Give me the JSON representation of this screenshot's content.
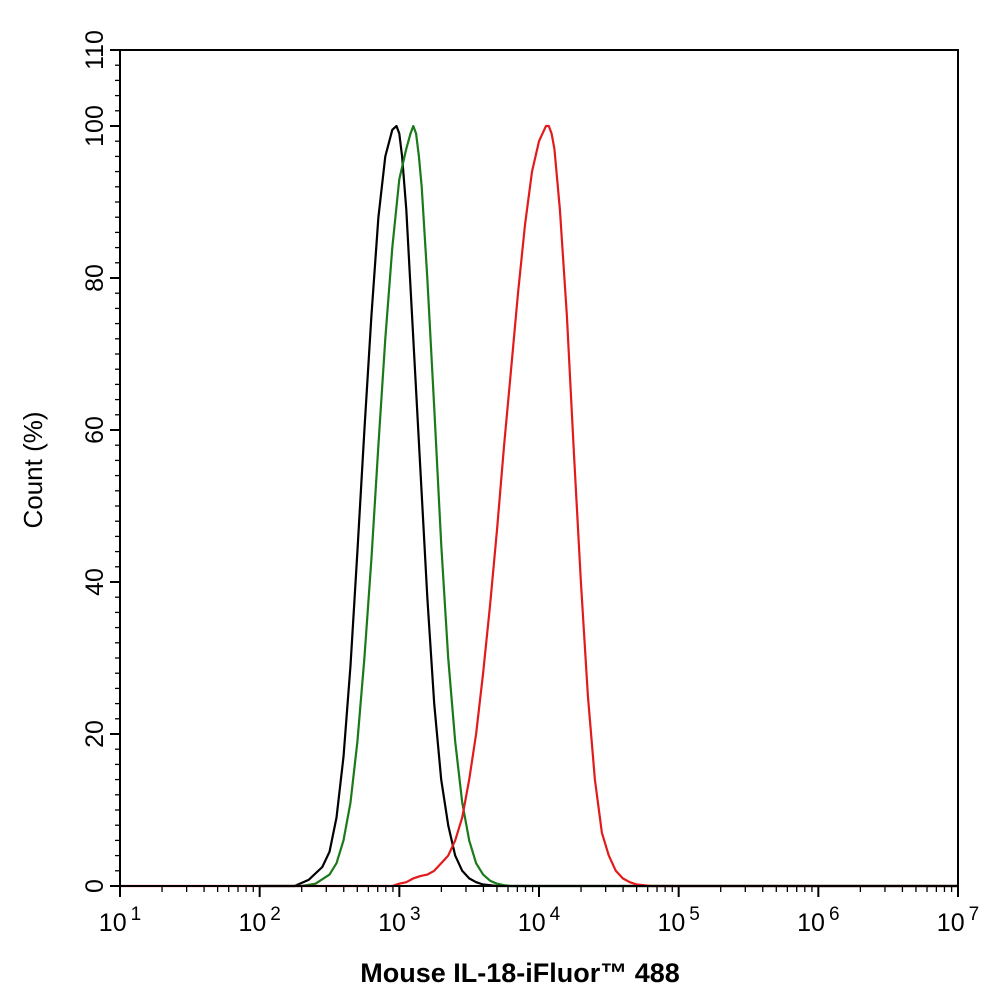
{
  "chart_data": {
    "type": "line",
    "title": "",
    "xlabel": "Mouse IL-18-iFluor™ 488",
    "ylabel": "Count  (%)",
    "xscale": "log",
    "xlim": [
      10,
      10000000
    ],
    "ylim": [
      0,
      110
    ],
    "x_ticks": [
      {
        "value": 10,
        "base": "10",
        "exp": "1"
      },
      {
        "value": 100,
        "base": "10",
        "exp": "2"
      },
      {
        "value": 1000,
        "base": "10",
        "exp": "3"
      },
      {
        "value": 10000,
        "base": "10",
        "exp": "4"
      },
      {
        "value": 100000,
        "base": "10",
        "exp": "5"
      },
      {
        "value": 1000000,
        "base": "10",
        "exp": "6"
      },
      {
        "value": 10000000,
        "base": "10",
        "exp": "7"
      }
    ],
    "y_ticks": [
      {
        "value": 0,
        "label": "0"
      },
      {
        "value": 20,
        "label": "20"
      },
      {
        "value": 40,
        "label": "40"
      },
      {
        "value": 60,
        "label": "60"
      },
      {
        "value": 80,
        "label": "80"
      },
      {
        "value": 100,
        "label": "100"
      },
      {
        "value": 110,
        "label": "110"
      }
    ],
    "grid": false,
    "legend": "none",
    "series": [
      {
        "color": "#000000",
        "x": [
          100,
          178,
          224,
          281,
          316,
          355,
          398,
          447,
          501,
          562,
          631,
          708,
          794,
          891,
          955,
          1000,
          1047,
          1122,
          1259,
          1413,
          1585,
          1778,
          1995,
          2239,
          2512,
          2818,
          3162,
          3548,
          3981,
          4467,
          5012,
          5623,
          10000000
        ],
        "y": [
          0,
          0,
          0.8,
          2.5,
          4.5,
          9,
          17,
          29,
          44,
          60,
          75,
          88,
          96,
          99.5,
          100,
          99,
          96,
          89,
          72,
          55,
          38,
          24,
          14,
          8,
          4,
          2,
          1,
          0.5,
          0.2,
          0.1,
          0,
          0,
          0
        ]
      },
      {
        "color": "#1a7a1a",
        "x": [
          100,
          200,
          251,
          316,
          355,
          398,
          447,
          501,
          562,
          631,
          708,
          794,
          891,
          1000,
          1122,
          1202,
          1259,
          1318,
          1380,
          1445,
          1585,
          1778,
          1995,
          2239,
          2512,
          2818,
          3162,
          3548,
          3981,
          4467,
          5012,
          5623,
          6310,
          10000000
        ],
        "y": [
          0,
          0,
          0.3,
          1.5,
          3,
          6,
          11,
          19,
          30,
          43,
          58,
          72,
          84,
          93,
          97,
          99,
          100,
          99,
          96,
          92,
          80,
          63,
          45,
          30,
          19,
          11,
          6,
          3,
          1.5,
          0.7,
          0.3,
          0.1,
          0,
          0
        ]
      },
      {
        "color": "#e31a1c",
        "x": [
          10,
          891,
          1000,
          1122,
          1259,
          1413,
          1585,
          1778,
          1995,
          2239,
          2512,
          2818,
          3162,
          3548,
          3981,
          4467,
          5012,
          5623,
          6310,
          7079,
          7943,
          8913,
          10000,
          11220,
          11749,
          12303,
          12882,
          14125,
          15849,
          17783,
          19953,
          22387,
          25119,
          28184,
          31623,
          35481,
          39811,
          44668,
          50119,
          56234,
          63096,
          10000000
        ],
        "y": [
          0,
          0,
          0.3,
          0.5,
          1,
          1.3,
          1.5,
          2,
          3,
          4,
          6,
          9,
          14,
          20,
          28,
          37,
          47,
          58,
          68,
          78,
          87,
          94,
          98,
          100,
          100,
          99,
          97,
          89,
          75,
          57,
          40,
          25,
          14,
          7,
          4,
          2,
          1,
          0.5,
          0.2,
          0.1,
          0,
          0
        ]
      }
    ]
  }
}
